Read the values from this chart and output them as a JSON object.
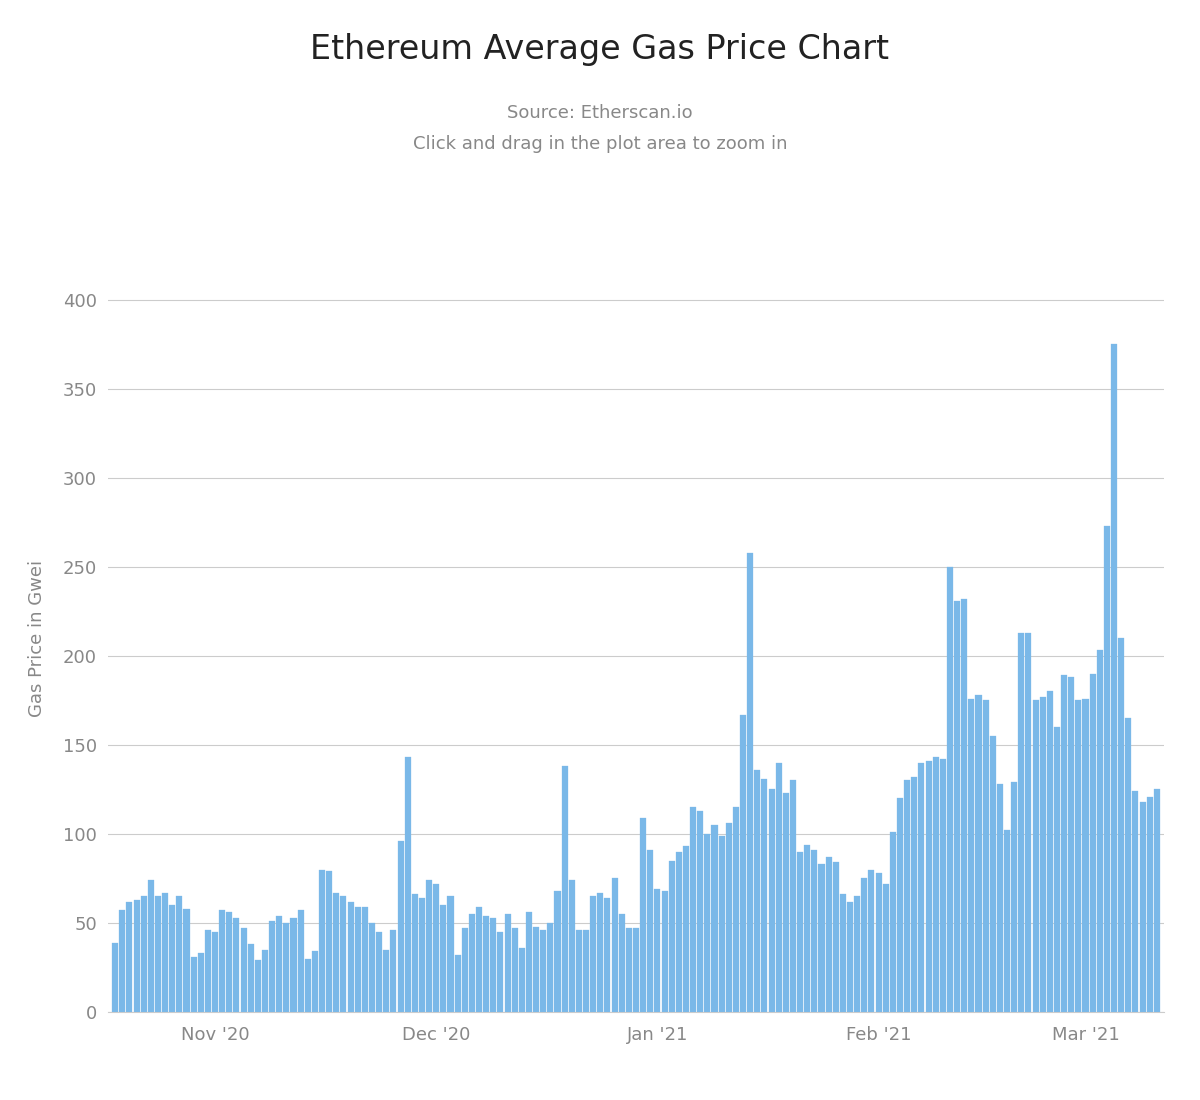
{
  "title": "Ethereum Average Gas Price Chart",
  "subtitle1": "Source: Etherscan.io",
  "subtitle2": "Click and drag in the plot area to zoom in",
  "ylabel": "Gas Price in Gwei",
  "background_color": "#ffffff",
  "bar_color": "#7ab8e8",
  "ylim": [
    0,
    420
  ],
  "yticks": [
    0,
    50,
    100,
    150,
    200,
    250,
    300,
    350,
    400
  ],
  "grid_color": "#cccccc",
  "title_fontsize": 24,
  "subtitle_fontsize": 13,
  "ylabel_fontsize": 13,
  "tick_fontsize": 13,
  "title_color": "#222222",
  "subtitle_color": "#888888",
  "axis_label_color": "#888888",
  "tick_label_color": "#888888",
  "values": [
    39,
    57,
    62,
    63,
    65,
    74,
    65,
    67,
    60,
    65,
    58,
    31,
    33,
    46,
    45,
    57,
    56,
    53,
    47,
    38,
    29,
    35,
    51,
    54,
    50,
    53,
    57,
    30,
    34,
    80,
    79,
    67,
    65,
    62,
    59,
    59,
    50,
    45,
    35,
    46,
    96,
    143,
    66,
    64,
    74,
    72,
    60,
    65,
    32,
    47,
    55,
    59,
    54,
    53,
    45,
    55,
    47,
    36,
    56,
    48,
    46,
    50,
    68,
    138,
    74,
    46,
    46,
    65,
    67,
    64,
    75,
    55,
    47,
    47,
    109,
    91,
    69,
    68,
    85,
    90,
    93,
    115,
    113,
    100,
    105,
    99,
    106,
    115,
    167,
    258,
    136,
    131,
    125,
    140,
    123,
    130,
    90,
    94,
    91,
    83,
    87,
    84,
    66,
    62,
    65,
    75,
    80,
    78,
    72,
    101,
    120,
    130,
    132,
    140,
    141,
    143,
    142,
    250,
    231,
    232,
    176,
    178,
    175,
    155,
    128,
    102,
    129,
    213,
    213,
    175,
    177,
    180,
    160,
    189,
    188,
    175,
    176,
    190,
    203,
    273,
    375,
    210,
    165,
    124,
    118,
    121,
    125
  ],
  "month_tick_positions": [
    14,
    45,
    76,
    107,
    136
  ],
  "month_tick_labels": [
    "Nov '20",
    "Dec '20",
    "Jan '21",
    "Feb '21",
    "Mar '21"
  ]
}
